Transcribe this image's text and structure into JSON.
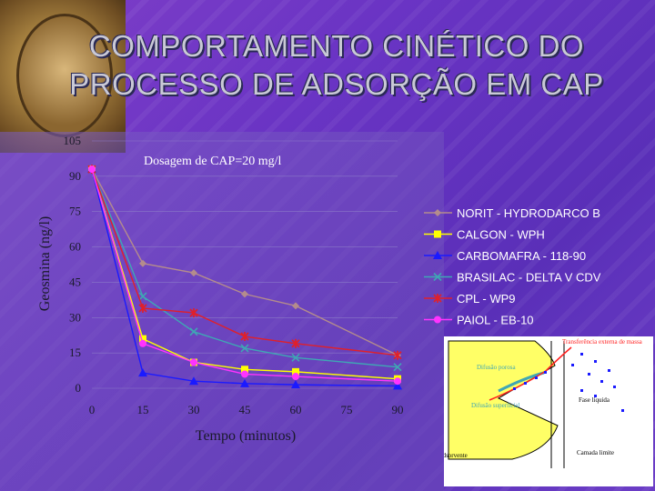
{
  "title_lines": [
    "COMPORTAMENTO CINÉTICO DO",
    "PROCESSO DE ADSORÇÃO EM CAP"
  ],
  "chart_data": {
    "type": "line",
    "subtitle": "Dosagem de CAP=20 mg/l",
    "xlabel": "Tempo (minutos)",
    "ylabel": "Geosmina (ng/l)",
    "x": [
      0,
      15,
      30,
      45,
      60,
      75,
      90
    ],
    "x_ticks": [
      "0",
      "15",
      "30",
      "45",
      "60",
      "75",
      "90"
    ],
    "y_ticks": [
      "0",
      "15",
      "30",
      "45",
      "60",
      "75",
      "90",
      "105"
    ],
    "xlim": [
      0,
      90
    ],
    "ylim": [
      0,
      105
    ],
    "legend_position": "right",
    "series": [
      {
        "name": "NORIT - HYDRODARCO B",
        "color": "#b48c8c",
        "marker": "diamond",
        "x": [
          0,
          15,
          30,
          45,
          60,
          90
        ],
        "values": [
          93,
          53,
          49,
          40,
          35,
          14
        ]
      },
      {
        "name": "CALGON - WPH",
        "color": "#ffff00",
        "marker": "square",
        "x": [
          0,
          15,
          30,
          45,
          60,
          90
        ],
        "values": [
          93,
          21,
          11,
          8,
          7,
          4
        ]
      },
      {
        "name": "CARBOMAFRA - 118-90",
        "color": "#1a1aff",
        "marker": "triangle",
        "x": [
          0,
          15,
          30,
          45,
          60,
          90
        ],
        "values": [
          93,
          6.5,
          3,
          2,
          1.5,
          1
        ]
      },
      {
        "name": "BRASILAC - DELTA V CDV",
        "color": "#3fa7b4",
        "marker": "x",
        "x": [
          0,
          15,
          30,
          45,
          60,
          90
        ],
        "values": [
          93,
          39,
          24,
          17,
          13,
          9
        ]
      },
      {
        "name": "CPL - WP9",
        "color": "#e0202a",
        "marker": "star",
        "x": [
          0,
          15,
          30,
          45,
          60,
          90
        ],
        "values": [
          93,
          34,
          32,
          22,
          19,
          14
        ]
      },
      {
        "name": "PAIOL - EB-10",
        "color": "#ff33ff",
        "marker": "circle",
        "x": [
          0,
          15,
          30,
          45,
          60,
          90
        ],
        "values": [
          93,
          19,
          11,
          6,
          5,
          3
        ]
      }
    ]
  },
  "diagram": {
    "label_transfer": "Transferência externa de massa",
    "label_pore": "Difusão porosa",
    "label_surface": "Difusão superficial",
    "label_liquid": "Fase líquida",
    "label_material": "Material adsorvente",
    "label_boundary": "Camada limite"
  }
}
